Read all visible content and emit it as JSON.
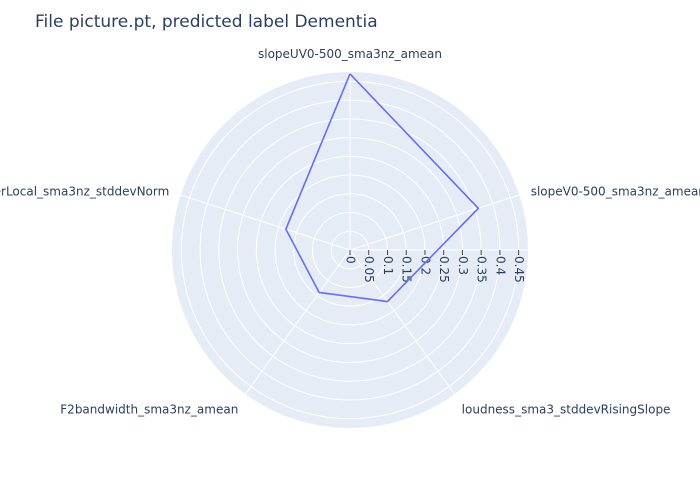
{
  "chart_data": {
    "type": "radar",
    "title": "File picture.pt, predicted label Dementia",
    "axes": [
      "slopeUV0-500_sma3nz_amean",
      "slopeV0-500_sma3nz_amean",
      "loudness_sma3_stddevRisingSlope",
      "F2bandwidth_sma3nz_amean",
      "jitterLocal_sma3nz_stddevNorm"
    ],
    "series": [
      {
        "values": [
          0.47,
          0.36,
          0.17,
          0.14,
          0.18
        ]
      }
    ],
    "radial_range": [
      0,
      0.475
    ],
    "radial_ticks": [
      "0",
      "0.05",
      "0.1",
      "0.15",
      "0.2",
      "0.25",
      "0.3",
      "0.35",
      "0.4",
      "0.45"
    ],
    "grid": true,
    "colors": {
      "line": "#636efa",
      "background": "#e5ecf6",
      "grid": "#ffffff",
      "text": "#2a3f5f"
    }
  }
}
